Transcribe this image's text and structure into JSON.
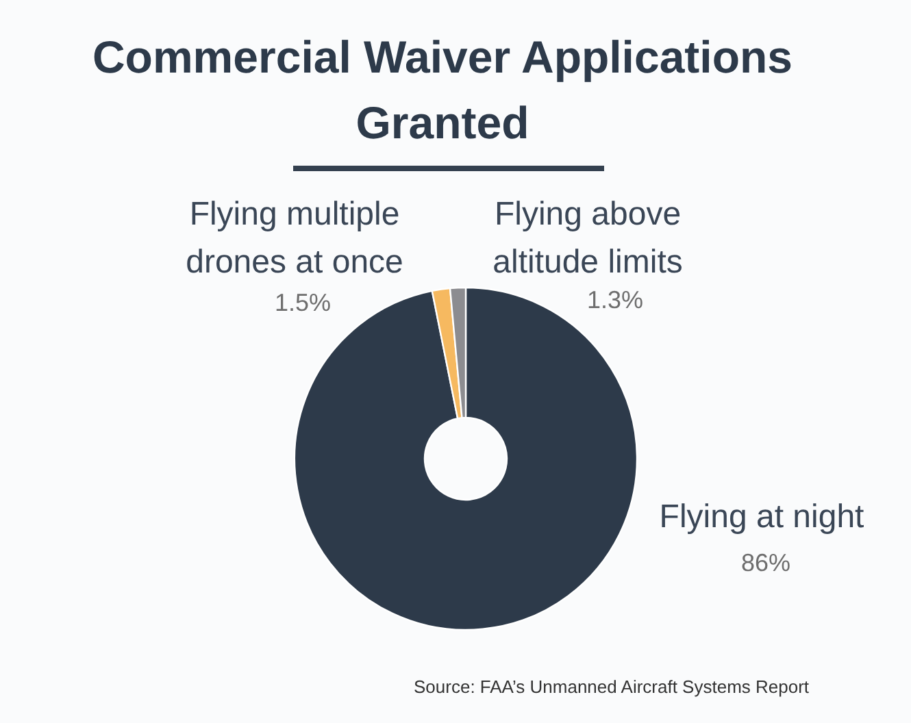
{
  "chart_data": {
    "type": "donut",
    "title": "Commercial Waiver Applications Granted",
    "categories": [
      "Flying at night",
      "Flying multiple drones at once",
      "Flying above altitude limits"
    ],
    "values": [
      86,
      1.5,
      1.3
    ],
    "colors": [
      "#2d3a4a",
      "#f6b960",
      "#8c8c90"
    ],
    "value_labels": [
      "86%",
      "1.5%",
      "1.3%"
    ],
    "annotations": [
      "Source: FAA’s Unmanned Aircraft Systems Report"
    ]
  }
}
